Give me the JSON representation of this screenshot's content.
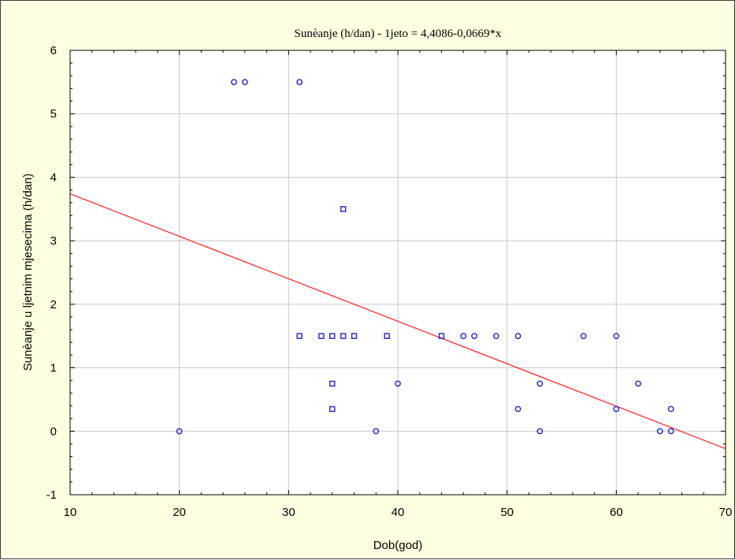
{
  "chart_data": {
    "type": "scatter",
    "title": "Sunèanje (h/dan) - 1jeto = 4,4086-0,0669*x",
    "xlabel": "Dob(god)",
    "ylabel": "Sunèanje u ljetnim mjesecima (h/dan)",
    "xlim": [
      10,
      70
    ],
    "ylim": [
      -1,
      6
    ],
    "x_ticks": [
      "10",
      "20",
      "30",
      "40",
      "50",
      "60",
      "70"
    ],
    "y_ticks": [
      "-1",
      "0",
      "1",
      "2",
      "3",
      "4",
      "5",
      "6"
    ],
    "grid": true,
    "legend": "none",
    "colors": {
      "points": "#1f1fd6",
      "fit_line": "#ff1a1a",
      "grid": "#c8c8c8",
      "background": "#ffffe1",
      "plot_background": "#ffffff"
    },
    "regression": {
      "intercept": 4.4086,
      "slope": -0.0669
    },
    "circle_points": [
      {
        "x": 20,
        "y": 0
      },
      {
        "x": 25,
        "y": 5.5
      },
      {
        "x": 26,
        "y": 5.5
      },
      {
        "x": 31,
        "y": 5.5
      },
      {
        "x": 38,
        "y": 0
      },
      {
        "x": 40,
        "y": 0.75
      },
      {
        "x": 46,
        "y": 1.5
      },
      {
        "x": 47,
        "y": 1.5
      },
      {
        "x": 49,
        "y": 1.5
      },
      {
        "x": 51,
        "y": 1.5
      },
      {
        "x": 51,
        "y": 0.35
      },
      {
        "x": 53,
        "y": 0.75
      },
      {
        "x": 53,
        "y": 0
      },
      {
        "x": 57,
        "y": 1.5
      },
      {
        "x": 60,
        "y": 1.5
      },
      {
        "x": 60,
        "y": 0.35
      },
      {
        "x": 62,
        "y": 0.75
      },
      {
        "x": 64,
        "y": 0
      },
      {
        "x": 65,
        "y": 0.35
      },
      {
        "x": 65,
        "y": 0
      }
    ],
    "square_points": [
      {
        "x": 31,
        "y": 1.5
      },
      {
        "x": 33,
        "y": 1.5
      },
      {
        "x": 34,
        "y": 1.5
      },
      {
        "x": 35,
        "y": 1.5
      },
      {
        "x": 36,
        "y": 1.5
      },
      {
        "x": 39,
        "y": 1.5
      },
      {
        "x": 44,
        "y": 1.5
      },
      {
        "x": 34,
        "y": 0.75
      },
      {
        "x": 34,
        "y": 0.35
      },
      {
        "x": 35,
        "y": 3.5
      }
    ]
  }
}
